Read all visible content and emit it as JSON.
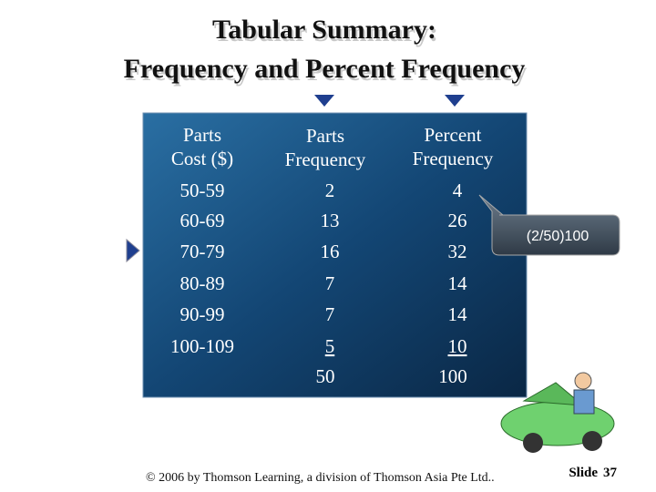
{
  "title": [
    "Tabular Summary:",
    "Frequency and Percent Frequency"
  ],
  "table": {
    "header": [
      [
        "Parts",
        "Cost ($)"
      ],
      [
        "Parts",
        "Frequency"
      ],
      [
        "Percent",
        "Frequency"
      ]
    ],
    "rows": [
      [
        "50-59",
        2,
        4
      ],
      [
        "60-69",
        13,
        26
      ],
      [
        "70-79",
        16,
        32
      ],
      [
        "80-89",
        7,
        14
      ],
      [
        "90-99",
        7,
        14
      ],
      [
        "100-109",
        5,
        10
      ]
    ],
    "totals": {
      "frequency": 50,
      "percent": 100
    }
  },
  "callout": "(2/50)100",
  "footer": "© 2006 by Thomson Learning, a division of Thomson Asia Pte Ltd..",
  "slide": {
    "label": "Slide",
    "number": 37
  }
}
